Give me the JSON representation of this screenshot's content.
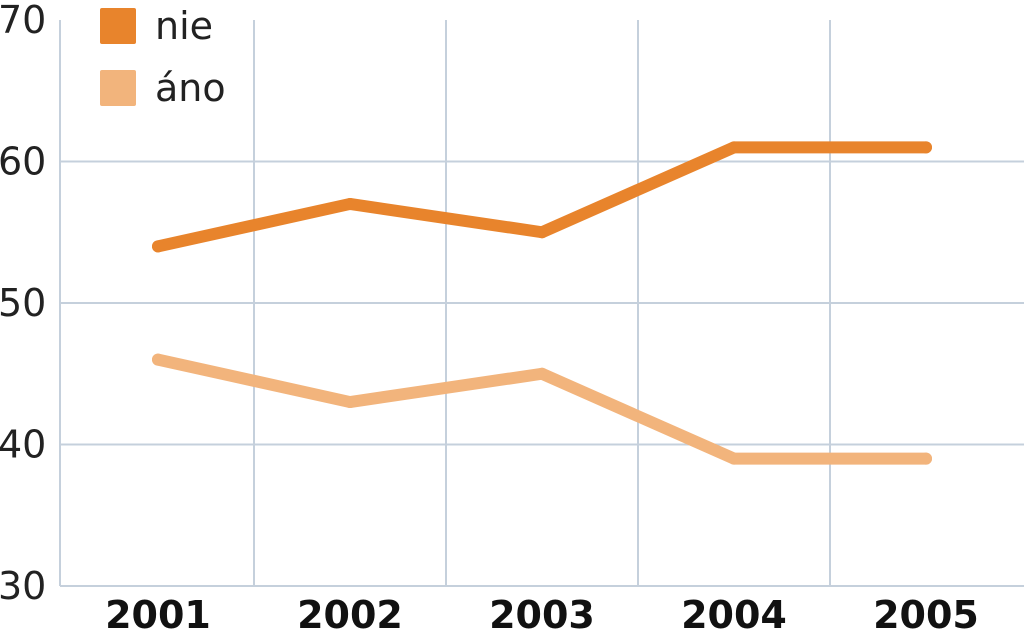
{
  "chart_data": {
    "type": "line",
    "title": "",
    "xlabel": "",
    "ylabel": "",
    "categories": [
      "2001",
      "2002",
      "2003",
      "2004",
      "2005"
    ],
    "ylim": [
      30,
      70
    ],
    "yticks": [
      30,
      40,
      50,
      60,
      70
    ],
    "grid": true,
    "legend_position": "top-left",
    "series": [
      {
        "name": "nie",
        "color": "#e8842c",
        "values": [
          54,
          57,
          55,
          61,
          61
        ]
      },
      {
        "name": "áno",
        "color": "#f2b47c",
        "values": [
          46,
          43,
          45,
          39,
          39
        ]
      }
    ]
  }
}
